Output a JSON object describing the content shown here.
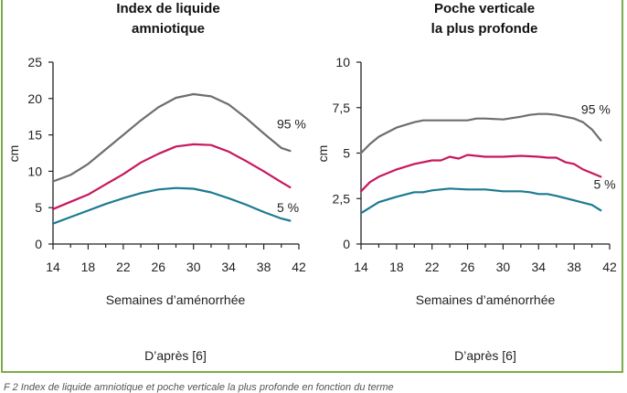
{
  "figure": {
    "caption": "F   2  Index de liquide amniotique et poche verticale la plus profonde en fonction du terme"
  },
  "chart_data": [
    {
      "type": "line",
      "title_line1": "Index de liquide",
      "title_line2": "amniotique",
      "xlabel": "Semaines d’aménorrhée",
      "ylabel": "cm",
      "xlim": [
        14,
        42
      ],
      "ylim": [
        0,
        25
      ],
      "xticks": [
        14,
        18,
        22,
        26,
        30,
        34,
        38,
        42
      ],
      "yticks": [
        0,
        5,
        10,
        15,
        20,
        25
      ],
      "ytick_labels": [
        "0",
        "5",
        "10",
        "15",
        "20",
        "25"
      ],
      "source": "D’après [6]",
      "series": [
        {
          "name": "95 %",
          "color": "#6e6e70",
          "label_x": 39.5,
          "label_y": 16.5,
          "x": [
            14,
            16,
            18,
            20,
            22,
            24,
            26,
            28,
            30,
            32,
            34,
            36,
            38,
            40,
            41
          ],
          "y": [
            8.6,
            9.5,
            11.0,
            13.0,
            15.0,
            17.0,
            18.8,
            20.1,
            20.6,
            20.3,
            19.2,
            17.3,
            15.2,
            13.2,
            12.8
          ]
        },
        {
          "name": "",
          "color": "#c8175e",
          "x": [
            14,
            16,
            18,
            20,
            22,
            24,
            26,
            28,
            30,
            32,
            34,
            36,
            38,
            40,
            41
          ],
          "y": [
            4.8,
            5.8,
            6.8,
            8.2,
            9.6,
            11.2,
            12.4,
            13.4,
            13.7,
            13.6,
            12.7,
            11.4,
            10.0,
            8.5,
            7.8
          ]
        },
        {
          "name": "5 %",
          "color": "#1b7a92",
          "label_x": 39.5,
          "label_y": 5.0,
          "x": [
            14,
            16,
            18,
            20,
            22,
            24,
            26,
            28,
            30,
            32,
            34,
            36,
            38,
            40,
            41
          ],
          "y": [
            2.8,
            3.7,
            4.6,
            5.5,
            6.3,
            7.0,
            7.5,
            7.7,
            7.6,
            7.1,
            6.3,
            5.4,
            4.4,
            3.5,
            3.2
          ]
        }
      ]
    },
    {
      "type": "line",
      "title_line1": "Poche verticale",
      "title_line2": "la plus profonde",
      "xlabel": "Semaines d’aménorrhée",
      "ylabel": "cm",
      "xlim": [
        14,
        42
      ],
      "ylim": [
        0,
        10
      ],
      "xticks": [
        14,
        18,
        22,
        26,
        30,
        34,
        38,
        42
      ],
      "yticks": [
        0,
        2.5,
        5,
        7.5,
        10
      ],
      "ytick_labels": [
        "0",
        "2,5",
        "5",
        "7,5",
        "10"
      ],
      "source": "D’après [6]",
      "series": [
        {
          "name": "95 %",
          "color": "#6e6e70",
          "label_x": 38.8,
          "label_y": 7.4,
          "x": [
            14,
            15,
            16,
            18,
            20,
            21,
            22,
            24,
            26,
            27,
            28,
            30,
            32,
            33,
            34,
            35,
            36,
            38,
            39,
            40,
            41
          ],
          "y": [
            5.0,
            5.5,
            5.9,
            6.4,
            6.7,
            6.8,
            6.8,
            6.8,
            6.8,
            6.9,
            6.9,
            6.85,
            7.0,
            7.1,
            7.15,
            7.15,
            7.1,
            6.9,
            6.7,
            6.3,
            5.7
          ]
        },
        {
          "name": "",
          "color": "#c8175e",
          "x": [
            14,
            15,
            16,
            18,
            20,
            22,
            23,
            24,
            25,
            26,
            28,
            30,
            32,
            34,
            35,
            36,
            37,
            38,
            39,
            40,
            41
          ],
          "y": [
            2.9,
            3.4,
            3.7,
            4.1,
            4.4,
            4.6,
            4.6,
            4.8,
            4.7,
            4.9,
            4.8,
            4.8,
            4.85,
            4.8,
            4.75,
            4.75,
            4.5,
            4.4,
            4.1,
            3.9,
            3.7
          ]
        },
        {
          "name": "5 %",
          "color": "#1b7a92",
          "label_x": 40.2,
          "label_y": 3.3,
          "x": [
            14,
            15,
            16,
            18,
            20,
            21,
            22,
            24,
            26,
            28,
            30,
            32,
            33,
            34,
            35,
            36,
            38,
            40,
            41
          ],
          "y": [
            1.7,
            2.0,
            2.3,
            2.6,
            2.85,
            2.85,
            2.95,
            3.05,
            3.0,
            3.0,
            2.9,
            2.9,
            2.85,
            2.75,
            2.75,
            2.65,
            2.4,
            2.15,
            1.85
          ]
        }
      ]
    }
  ]
}
